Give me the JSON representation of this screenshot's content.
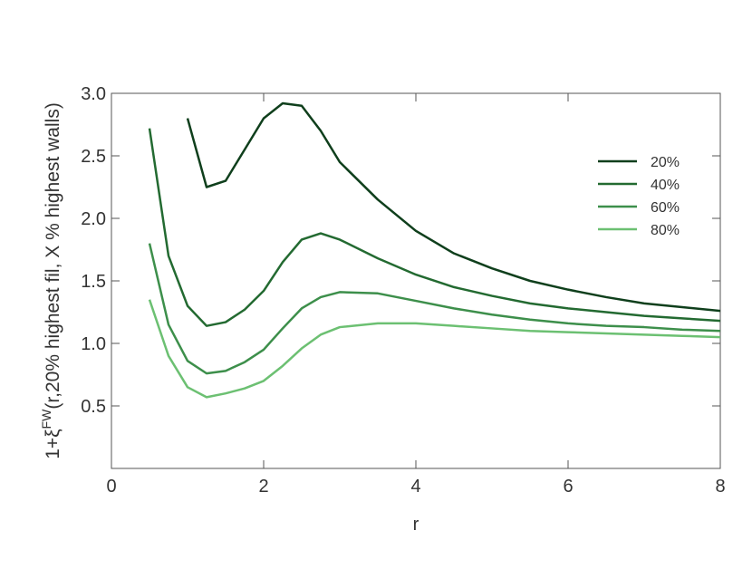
{
  "chart_data": {
    "type": "line",
    "xlabel": "r",
    "ylabel": "1+ξ",
    "ylabel_sup": "FW",
    "ylabel_rest": "(r,20% highest fil, X % highest walls)",
    "x": [
      0.5,
      0.75,
      1,
      1.25,
      1.5,
      1.75,
      2,
      2.25,
      2.5,
      2.75,
      3,
      3.5,
      4,
      4.5,
      5,
      5.5,
      6,
      6.5,
      7,
      7.5,
      8
    ],
    "series": [
      {
        "name": "20%",
        "color": "#0f3f1c",
        "values": [
          null,
          null,
          2.8,
          2.25,
          2.3,
          2.55,
          2.8,
          2.92,
          2.9,
          2.7,
          2.45,
          2.15,
          1.9,
          1.72,
          1.6,
          1.5,
          1.43,
          1.37,
          1.32,
          1.29,
          1.26
        ]
      },
      {
        "name": "40%",
        "color": "#236a31",
        "values": [
          2.72,
          1.7,
          1.3,
          1.14,
          1.17,
          1.27,
          1.42,
          1.65,
          1.83,
          1.88,
          1.83,
          1.68,
          1.55,
          1.45,
          1.38,
          1.32,
          1.28,
          1.25,
          1.22,
          1.2,
          1.18
        ]
      },
      {
        "name": "60%",
        "color": "#3d8f4b",
        "values": [
          1.8,
          1.15,
          0.86,
          0.76,
          0.78,
          0.85,
          0.95,
          1.12,
          1.28,
          1.37,
          1.41,
          1.4,
          1.34,
          1.28,
          1.23,
          1.19,
          1.16,
          1.14,
          1.13,
          1.11,
          1.1
        ]
      },
      {
        "name": "80%",
        "color": "#6cc072",
        "values": [
          1.35,
          0.9,
          0.65,
          0.57,
          0.6,
          0.64,
          0.7,
          0.82,
          0.96,
          1.07,
          1.13,
          1.16,
          1.16,
          1.14,
          1.12,
          1.1,
          1.09,
          1.08,
          1.07,
          1.06,
          1.05
        ]
      }
    ],
    "xlim": [
      0,
      8
    ],
    "xticks": [
      0,
      2,
      4,
      6,
      8
    ],
    "ylim": [
      0,
      3
    ],
    "yticks": [
      {
        "value": 0.5,
        "label": "0.5"
      },
      {
        "value": 1,
        "label": "1.0"
      },
      {
        "value": 1.5,
        "label": "1.5"
      },
      {
        "value": 2,
        "label": "2.0"
      },
      {
        "value": 2.5,
        "label": "2.5"
      },
      {
        "value": 3,
        "label": "3.0"
      }
    ],
    "legend": "upper right"
  }
}
